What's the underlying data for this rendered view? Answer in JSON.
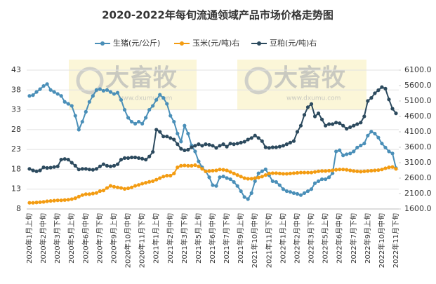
{
  "chart_data": {
    "type": "line",
    "title": "2020-2022年每旬流通领域产品市场价格走势图",
    "watermark": {
      "text": "大畜牧",
      "url": "www.dxumu.com"
    },
    "categories": [
      "2020年1月上旬",
      null,
      null,
      null,
      "2020年2月中旬",
      null,
      null,
      null,
      "2020年3月下旬",
      null,
      null,
      null,
      "2020年5月上旬",
      null,
      null,
      null,
      "2020年6月中旬",
      null,
      null,
      null,
      "2020年7月下旬",
      null,
      null,
      null,
      "2020年9月上旬",
      null,
      null,
      null,
      "2020年10月中旬",
      null,
      null,
      null,
      "2020年11月下旬",
      null,
      null,
      null,
      "2021年1月上旬",
      null,
      null,
      null,
      "2021年2月中旬",
      null,
      null,
      null,
      "2021年3月下旬",
      null,
      null,
      null,
      "2021年5月上旬",
      null,
      null,
      null,
      "2021年6月中旬",
      null,
      null,
      null,
      "2021年7月下旬",
      null,
      null,
      null,
      "2021年9月上旬",
      null,
      null,
      null,
      "2021年10月中旬",
      null,
      null,
      null,
      "2021年11月下旬",
      null,
      null,
      null,
      "2022年1月上旬",
      null,
      null,
      null,
      "2022年2月中旬",
      null,
      null,
      null,
      "2022年3月下旬",
      null,
      null,
      null,
      "2022年5月上旬",
      null,
      null,
      null,
      "2022年6月中旬",
      null,
      null,
      null,
      "2022年7月下旬",
      null,
      null,
      null,
      "2022年9月上旬",
      null,
      null,
      null,
      "2022年10月中旬",
      null,
      null,
      null,
      "2022年11月下旬"
    ],
    "series": [
      {
        "name": "生猪(元/公斤)",
        "color": "#4a8fb8",
        "values": [
          36.5,
          36.7,
          37.5,
          38.2,
          39.0,
          39.5,
          38.0,
          37.5,
          37.0,
          36.5,
          35.0,
          34.5,
          34.0,
          31.5,
          28.0,
          30.0,
          32.5,
          35.0,
          36.5,
          38.0,
          38.2,
          37.8,
          38.0,
          37.5,
          37.0,
          37.3,
          35.5,
          33.0,
          31.0,
          30.0,
          29.5,
          30.0,
          29.5,
          31.0,
          33.0,
          34.0,
          35.5,
          36.8,
          36.0,
          34.5,
          31.5,
          30.0,
          27.0,
          25.0,
          29.0,
          27.0,
          24.0,
          22.5,
          20.0,
          18.5,
          17.5,
          16.0,
          14.0,
          13.8,
          16.0,
          16.2,
          15.8,
          15.5,
          14.8,
          13.8,
          12.5,
          11.0,
          10.5,
          12.0,
          15.0,
          17.0,
          17.5,
          18.0,
          16.5,
          15.0,
          14.8,
          14.0,
          13.0,
          12.5,
          12.3,
          12.0,
          11.8,
          11.5,
          12.0,
          12.5,
          13.0,
          14.5,
          15.0,
          15.5,
          15.5,
          16.0,
          17.0,
          22.5,
          22.8,
          21.5,
          21.8,
          22.0,
          22.5,
          23.5,
          24.0,
          24.5,
          26.5,
          27.5,
          27.0,
          26.0,
          24.5,
          23.5,
          22.5,
          22.0,
          18.3
        ]
      },
      {
        "name": "玉米(元/吨)右",
        "color": "#f39c12",
        "axis": "y2",
        "values": [
          1800,
          1800,
          1810,
          1820,
          1830,
          1850,
          1860,
          1870,
          1880,
          1880,
          1890,
          1900,
          1920,
          1950,
          2000,
          2050,
          2080,
          2080,
          2100,
          2120,
          2180,
          2200,
          2280,
          2350,
          2320,
          2300,
          2280,
          2250,
          2270,
          2300,
          2350,
          2380,
          2420,
          2450,
          2480,
          2500,
          2550,
          2600,
          2650,
          2680,
          2680,
          2750,
          2950,
          3000,
          3010,
          3000,
          3000,
          3020,
          2980,
          2900,
          2820,
          2830,
          2840,
          2850,
          2880,
          2870,
          2850,
          2800,
          2750,
          2700,
          2650,
          2600,
          2580,
          2580,
          2600,
          2620,
          2650,
          2700,
          2750,
          2760,
          2760,
          2750,
          2740,
          2740,
          2750,
          2760,
          2770,
          2780,
          2780,
          2780,
          2780,
          2800,
          2820,
          2830,
          2830,
          2840,
          2850,
          2870,
          2880,
          2880,
          2870,
          2850,
          2830,
          2820,
          2810,
          2820,
          2830,
          2840,
          2850,
          2860,
          2880,
          2920,
          2950,
          2960,
          2900
        ]
      },
      {
        "name": "豆粕(元/吨)右",
        "color": "#2c4a5e",
        "axis": "y2",
        "values": [
          2900,
          2850,
          2820,
          2850,
          2950,
          2930,
          2940,
          2960,
          2980,
          3200,
          3220,
          3200,
          3100,
          3000,
          2880,
          2900,
          2900,
          2880,
          2870,
          2900,
          2980,
          3050,
          3000,
          2980,
          3000,
          3050,
          3200,
          3250,
          3250,
          3270,
          3270,
          3250,
          3230,
          3200,
          3300,
          3450,
          4170,
          4100,
          3950,
          3950,
          3900,
          3850,
          3700,
          3550,
          3500,
          3520,
          3600,
          3650,
          3700,
          3650,
          3700,
          3680,
          3650,
          3580,
          3650,
          3700,
          3620,
          3720,
          3700,
          3720,
          3750,
          3780,
          3850,
          3900,
          3980,
          3900,
          3800,
          3600,
          3580,
          3600,
          3600,
          3620,
          3650,
          3700,
          3750,
          3800,
          4100,
          4300,
          4650,
          4900,
          5000,
          4600,
          4700,
          4500,
          4300,
          4350,
          4350,
          4400,
          4380,
          4300,
          4200,
          4250,
          4300,
          4350,
          4400,
          4600,
          5100,
          5200,
          5350,
          5450,
          5550,
          5500,
          5150,
          4850,
          4700
        ]
      }
    ],
    "ylim": [
      8,
      43
    ],
    "yticks": [
      8,
      13,
      18,
      23,
      28,
      33,
      38,
      43
    ],
    "y2lim": [
      1600,
      6100
    ],
    "y2ticks": [
      {
        "value": 1600,
        "label": "1600.0"
      },
      {
        "value": 2100,
        "label": "2100.0"
      },
      {
        "value": 2600,
        "label": "2600.0"
      },
      {
        "value": 3100,
        "label": "3100.0"
      },
      {
        "value": 3600,
        "label": "3600.0"
      },
      {
        "value": 4100,
        "label": "4100.0"
      },
      {
        "value": 4600,
        "label": "4600.0"
      },
      {
        "value": 5100,
        "label": "5100.0"
      },
      {
        "value": 5600,
        "label": "5600.0"
      },
      {
        "value": 6100,
        "label": "6100.0"
      }
    ],
    "grid": true,
    "legend": "top"
  }
}
